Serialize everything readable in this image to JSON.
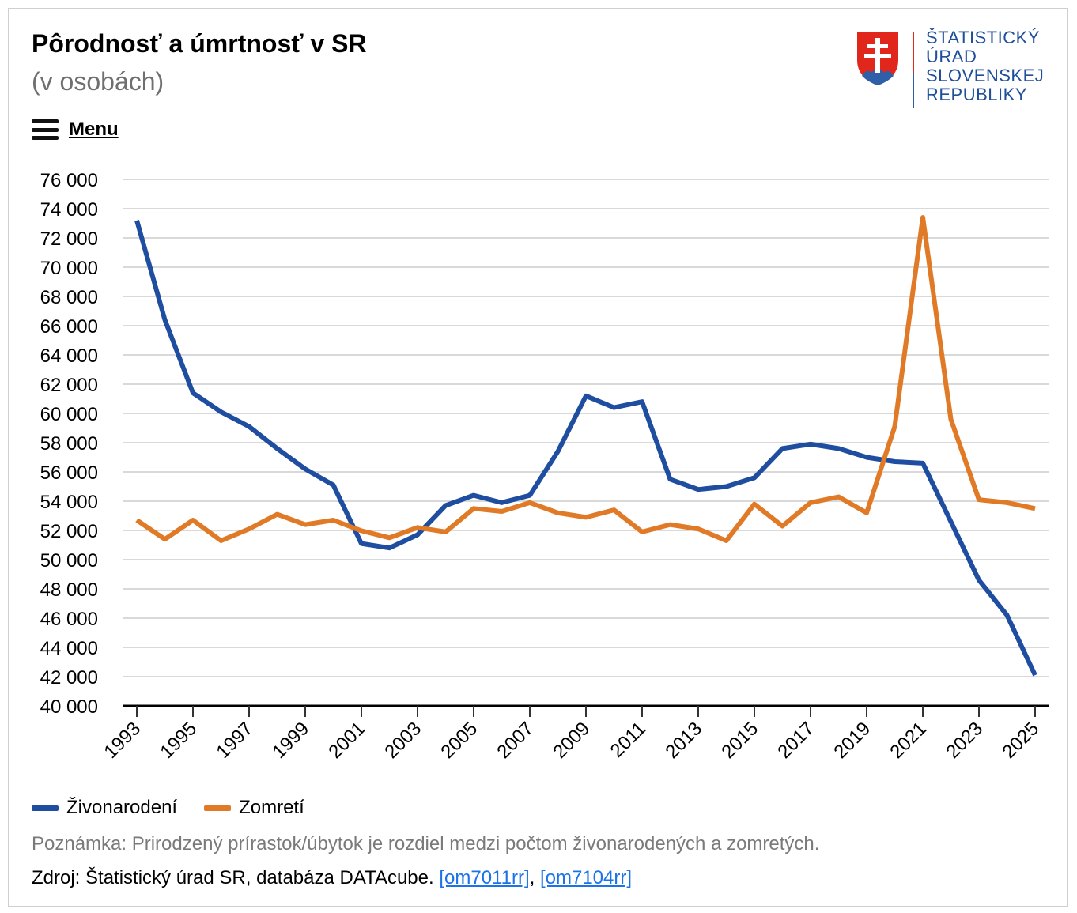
{
  "header": {
    "title": "Pôrodnosť a úmrtnosť v SR",
    "subtitle": "(v osobách)",
    "menu_label": "Menu"
  },
  "logo": {
    "lines": [
      "ŠTATISTICKÝ",
      "ÚRAD",
      "SLOVENSKEJ",
      "REPUBLIKY"
    ]
  },
  "colors": {
    "births": "#1f4ea1",
    "deaths": "#e07a26",
    "grid": "#d9d9d9",
    "axis": "#000000",
    "logo_red": "#e1261c",
    "logo_blue": "#2e5fa8"
  },
  "chart_data": {
    "type": "line",
    "title": "Pôrodnosť a úmrtnosť v SR",
    "subtitle": "(v osobách)",
    "x": [
      1993,
      1994,
      1995,
      1996,
      1997,
      1998,
      1999,
      2000,
      2001,
      2002,
      2003,
      2004,
      2005,
      2006,
      2007,
      2008,
      2009,
      2010,
      2011,
      2012,
      2013,
      2014,
      2015,
      2016,
      2017,
      2018,
      2019,
      2020,
      2021,
      2022,
      2023,
      2024,
      2025
    ],
    "x_tick_labels": [
      "1993",
      "1995",
      "1997",
      "1999",
      "2001",
      "2003",
      "2005",
      "2007",
      "2009",
      "2011",
      "2013",
      "2015",
      "2017",
      "2019",
      "2021",
      "2023",
      "2025"
    ],
    "y_tick_labels": [
      "40 000",
      "42 000",
      "44 000",
      "46 000",
      "48 000",
      "50 000",
      "52 000",
      "54 000",
      "56 000",
      "58 000",
      "60 000",
      "62 000",
      "64 000",
      "66 000",
      "68 000",
      "70 000",
      "72 000",
      "74 000",
      "76 000"
    ],
    "ylim": [
      40000,
      76000
    ],
    "grid": true,
    "legend_position": "bottom-left",
    "series": [
      {
        "name": "Živonarodení",
        "color": "#1f4ea1",
        "values": [
          73200,
          66400,
          61400,
          60100,
          59100,
          57600,
          56200,
          55100,
          51100,
          50800,
          51700,
          53700,
          54400,
          53900,
          54400,
          57400,
          61200,
          60400,
          60800,
          55500,
          54800,
          55000,
          55600,
          57600,
          57900,
          57600,
          57000,
          56700,
          56600,
          52600,
          48600,
          46200,
          42100
        ]
      },
      {
        "name": "Zomretí",
        "color": "#e07a26",
        "values": [
          52700,
          51400,
          52700,
          51300,
          52100,
          53100,
          52400,
          52700,
          51980,
          51500,
          52200,
          51900,
          53500,
          53300,
          53900,
          53200,
          52900,
          53400,
          51900,
          52400,
          52100,
          51300,
          53800,
          52300,
          53900,
          54300,
          53200,
          59100,
          73400,
          59600,
          54100,
          53900,
          53500
        ]
      }
    ]
  },
  "footer": {
    "note": "Poznámka: Prirodzený prírastok/úbytok je rozdiel medzi počtom živonarodených a zomretých.",
    "source_text": "Zdroj: Štatistický úrad SR, databáza DATAcube.",
    "link1": "[om7011rr]",
    "separator": ",",
    "link2": "[om7104rr]"
  }
}
